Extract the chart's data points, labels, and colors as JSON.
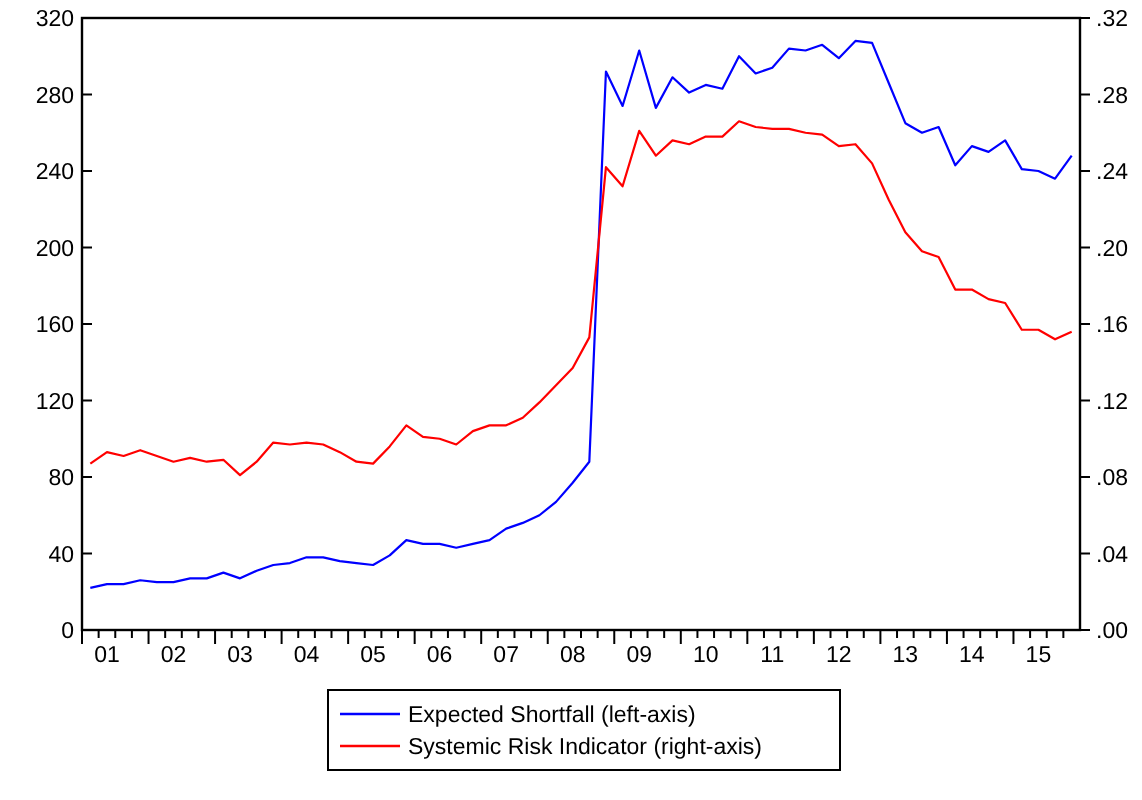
{
  "chart_data": {
    "type": "line",
    "categories": [
      null,
      "01",
      null,
      null,
      null,
      "02",
      null,
      null,
      null,
      "03",
      null,
      null,
      null,
      "04",
      null,
      null,
      null,
      "05",
      null,
      null,
      null,
      "06",
      null,
      null,
      null,
      "07",
      null,
      null,
      null,
      "08",
      null,
      null,
      null,
      "09",
      null,
      null,
      null,
      "10",
      null,
      null,
      null,
      "11",
      null,
      null,
      null,
      "12",
      null,
      null,
      null,
      "13",
      null,
      null,
      null,
      "14",
      null,
      null,
      null,
      "15",
      null,
      null
    ],
    "series": [
      {
        "name": "Expected Shortfall (left-axis)",
        "color": "#0000ff",
        "values": [
          22,
          24,
          24,
          26,
          25,
          25,
          27,
          27,
          30,
          27,
          31,
          34,
          35,
          38,
          38,
          36,
          35,
          34,
          39,
          47,
          45,
          45,
          43,
          45,
          47,
          53,
          56,
          60,
          67,
          77,
          88,
          292,
          274,
          303,
          273,
          289,
          281,
          285,
          283,
          300,
          291,
          294,
          304,
          303,
          306,
          299,
          308,
          307,
          286,
          265,
          260,
          263,
          243,
          253,
          250,
          256,
          241,
          240,
          236,
          248
        ]
      },
      {
        "name": "Systemic Risk Indicator (right-axis)",
        "color": "#ff0000",
        "axis": "y2",
        "values": [
          0.087,
          0.093,
          0.091,
          0.094,
          0.091,
          0.088,
          0.09,
          0.088,
          0.089,
          0.081,
          0.088,
          0.098,
          0.097,
          0.098,
          0.097,
          0.093,
          0.088,
          0.087,
          0.096,
          0.107,
          0.101,
          0.1,
          0.097,
          0.104,
          0.107,
          0.107,
          0.111,
          0.119,
          0.128,
          0.137,
          0.153,
          0.242,
          0.232,
          0.261,
          0.248,
          0.256,
          0.254,
          0.258,
          0.258,
          0.266,
          0.263,
          0.262,
          0.262,
          0.26,
          0.259,
          0.253,
          0.254,
          0.244,
          0.225,
          0.208,
          0.198,
          0.195,
          0.178,
          0.178,
          0.173,
          0.171,
          0.157,
          0.157,
          0.152,
          0.156
        ]
      }
    ],
    "ylim": [
      0,
      320
    ],
    "yticks": [
      0,
      40,
      80,
      120,
      160,
      200,
      240,
      280,
      320
    ],
    "y2lim": [
      0,
      0.32
    ],
    "y2ticks": [
      {
        "value": 0,
        "label": ".00"
      },
      {
        "value": 0.04,
        "label": ".04"
      },
      {
        "value": 0.08,
        "label": ".08"
      },
      {
        "value": 0.12,
        "label": ".12"
      },
      {
        "value": 0.16,
        "label": ".16"
      },
      {
        "value": 0.2,
        "label": ".20"
      },
      {
        "value": 0.24,
        "label": ".24"
      },
      {
        "value": 0.28,
        "label": ".28"
      },
      {
        "value": 0.32,
        "label": ".32"
      }
    ],
    "grid": false,
    "legend": "bottom",
    "marker": "none",
    "line_style": "solid"
  }
}
